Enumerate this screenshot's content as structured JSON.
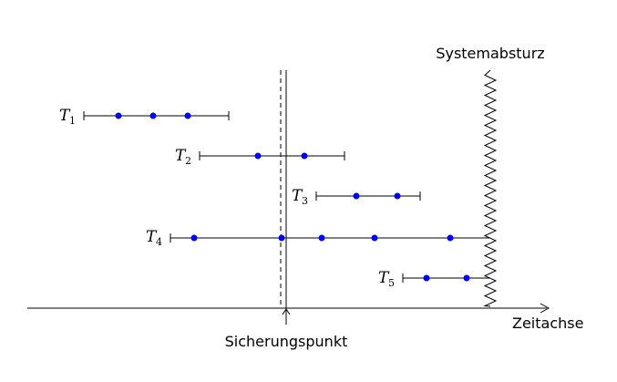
{
  "labels": {
    "crash": "Systemabsturz",
    "checkpoint": "Sicherungspunkt",
    "time_axis": "Zeitachse"
  },
  "colors": {
    "point": "#0000ee",
    "line": "#000000"
  },
  "transactions": [
    {
      "name": "T",
      "sub": "1",
      "points": 3
    },
    {
      "name": "T",
      "sub": "2",
      "points": 2
    },
    {
      "name": "T",
      "sub": "3",
      "points": 2
    },
    {
      "name": "T",
      "sub": "4",
      "points": 5
    },
    {
      "name": "T",
      "sub": "5",
      "points": 2
    }
  ]
}
